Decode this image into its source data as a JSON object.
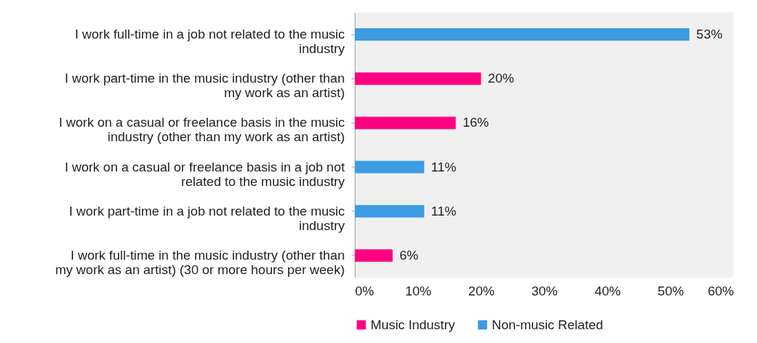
{
  "chart_data": {
    "type": "bar",
    "orientation": "horizontal",
    "categories": [
      "I work full-time in a job not related to the music industry",
      "I work part-time in the music industry (other than my work as an artist)",
      "I work on a casual or freelance basis in the music industry (other than my work as an artist)",
      "I work on a casual or freelance basis in a job not related to the music industry",
      "I work part-time in a job not related to the music industry",
      "I work full-time in the music industry (other than my work as an artist) (30 or more hours per week)"
    ],
    "series": [
      {
        "name": "Music Industry",
        "color": "#ff0080",
        "values": [
          null,
          20,
          16,
          null,
          null,
          6
        ],
        "value_labels": [
          null,
          "20%",
          "16%",
          null,
          null,
          "6%"
        ]
      },
      {
        "name": "Non-music Related",
        "color": "#3d9be4",
        "values": [
          53,
          null,
          null,
          11,
          11,
          null
        ],
        "value_labels": [
          "53%",
          null,
          null,
          "11%",
          "11%",
          null
        ]
      }
    ],
    "xlim": [
      0,
      60
    ],
    "xticks": [
      {
        "value": 0,
        "label": "0%"
      },
      {
        "value": 10,
        "label": "10%"
      },
      {
        "value": 20,
        "label": "20%"
      },
      {
        "value": 30,
        "label": "30%"
      },
      {
        "value": 40,
        "label": "40%"
      },
      {
        "value": 50,
        "label": "50%"
      },
      {
        "value": 60,
        "label": "60%"
      }
    ],
    "grid": false,
    "legend": "bottom"
  }
}
